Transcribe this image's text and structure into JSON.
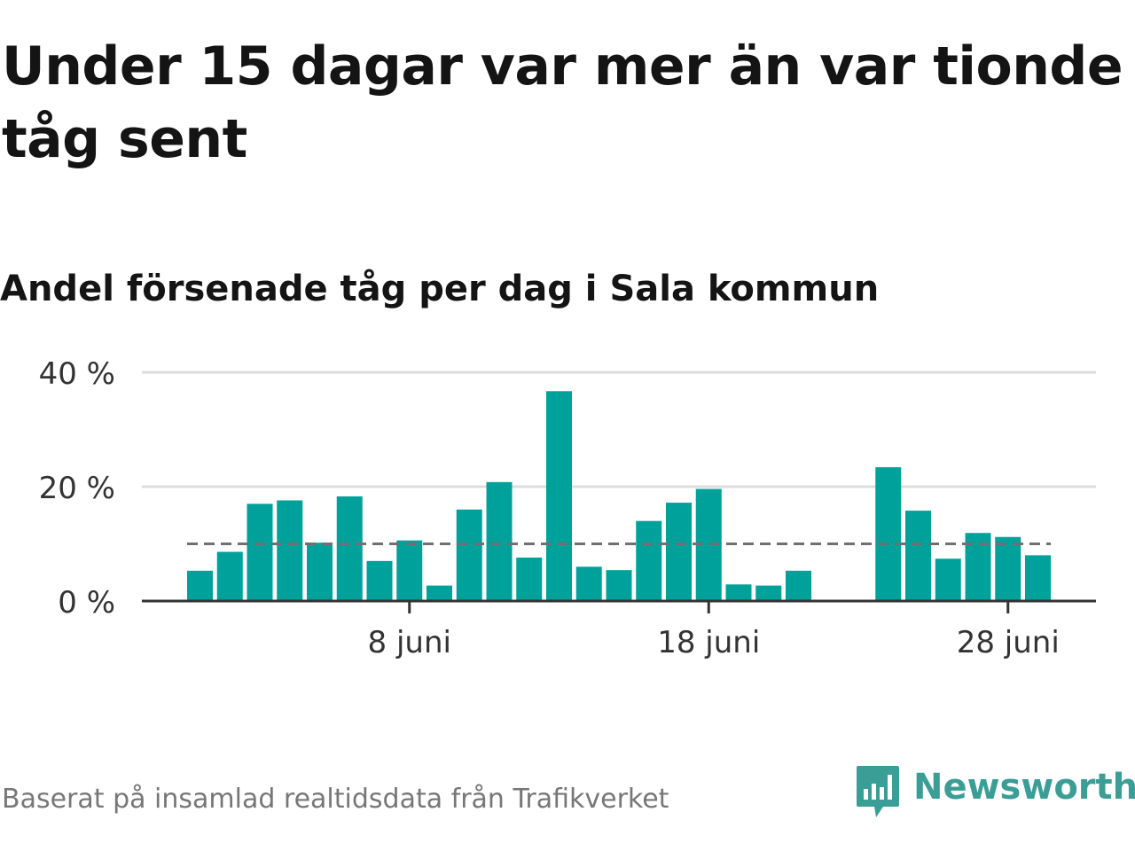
{
  "title": "Under 15 dagar var mer än var tionde tåg sent",
  "subtitle": "Andel försenade tåg per dag i Sala kommun",
  "footer": {
    "source_text": "Baserat på insamlad realtidsdata från Trafikverket",
    "brand_name": "Newsworthy",
    "brand_icon": "chart-speech-bubble-icon"
  },
  "colors": {
    "bar": "#00a19a",
    "reference_line": "#707070",
    "grid": "#dddddd",
    "axis": "#333333",
    "brand": "#3b9e96"
  },
  "chart_data": {
    "type": "bar",
    "title": "Andel försenade tåg per dag i Sala kommun",
    "xlabel": "",
    "ylabel": "",
    "x_unit": "day of June",
    "days": [
      1,
      2,
      3,
      4,
      5,
      6,
      7,
      8,
      9,
      10,
      11,
      12,
      13,
      14,
      15,
      16,
      17,
      18,
      19,
      20,
      21,
      22,
      23,
      24,
      25,
      26,
      27,
      28,
      29
    ],
    "values": [
      5.3,
      8.6,
      17.0,
      17.6,
      10.2,
      18.3,
      7.0,
      10.6,
      2.7,
      16.0,
      20.8,
      7.6,
      36.7,
      6.0,
      5.4,
      14.0,
      17.2,
      19.6,
      2.9,
      2.7,
      5.3,
      null,
      null,
      23.4,
      15.8,
      7.4,
      11.9,
      11.2,
      8.0
    ],
    "reference_line": 10,
    "ylim": [
      0,
      40
    ],
    "y_ticks": [
      0,
      20,
      40
    ],
    "y_tick_labels": [
      "0 %",
      "20 %",
      "40 %"
    ],
    "x_ticks": [
      8,
      18,
      28
    ],
    "x_tick_labels": [
      "8 juni",
      "18 juni",
      "28 juni"
    ],
    "grid": true,
    "legend": "none"
  }
}
